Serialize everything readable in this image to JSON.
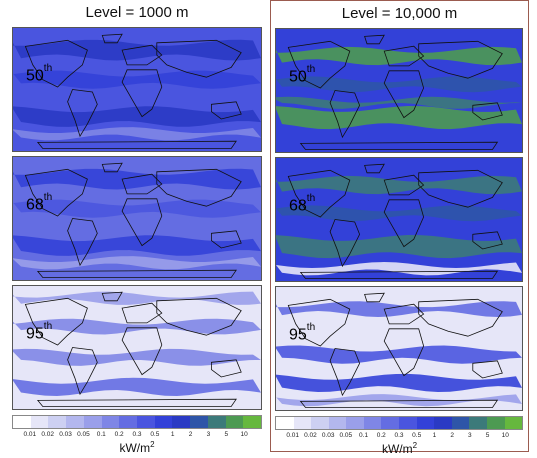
{
  "columns": [
    {
      "title": "Level = 1000 m",
      "panels": [
        {
          "pct": "50",
          "sup": "th"
        },
        {
          "pct": "68",
          "sup": "th"
        },
        {
          "pct": "95",
          "sup": "th"
        }
      ]
    },
    {
      "title": "Level = 10,000 m",
      "panels": [
        {
          "pct": "50",
          "sup": "th"
        },
        {
          "pct": "68",
          "sup": "th"
        },
        {
          "pct": "95",
          "sup": "th"
        }
      ]
    }
  ],
  "colorbar": {
    "ticks": [
      "0.01",
      "0.02",
      "0.03",
      "0.05",
      "0.1",
      "0.2",
      "0.3",
      "0.5",
      "1",
      "2",
      "3",
      "5",
      "10"
    ],
    "unit": "kW/m",
    "unit_sup": "2",
    "colors": [
      "#ffffff",
      "#e6e6f8",
      "#cdd0f2",
      "#b3b7ee",
      "#9a9fea",
      "#7f86e6",
      "#646de2",
      "#4a55df",
      "#3341d8",
      "#2a3ac4",
      "#2e55a8",
      "#3c7a7a",
      "#4d9a52",
      "#66b83e"
    ]
  }
}
